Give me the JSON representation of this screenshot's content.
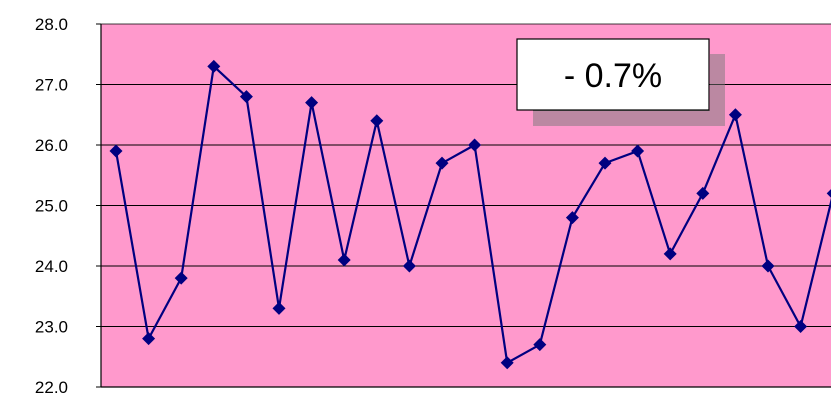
{
  "chart_data": {
    "type": "line",
    "title": "",
    "xlabel": "",
    "ylabel": "",
    "ylim": [
      22.0,
      28.0
    ],
    "y_ticks": [
      "22.0",
      "23.0",
      "24.0",
      "25.0",
      "26.0",
      "27.0",
      "28.0"
    ],
    "grid": true,
    "plot_background": "#ff99cc",
    "line_color": "#000080",
    "marker": "diamond",
    "series": [
      {
        "values": [
          25.9,
          22.8,
          23.8,
          27.3,
          26.8,
          23.3,
          26.7,
          24.1,
          26.4,
          24.0,
          25.7,
          26.0,
          22.4,
          22.7,
          24.8,
          25.7,
          25.9,
          24.2,
          25.2,
          26.5,
          24.0,
          23.0,
          25.2
        ]
      }
    ],
    "annotation": "- 0.7%"
  }
}
